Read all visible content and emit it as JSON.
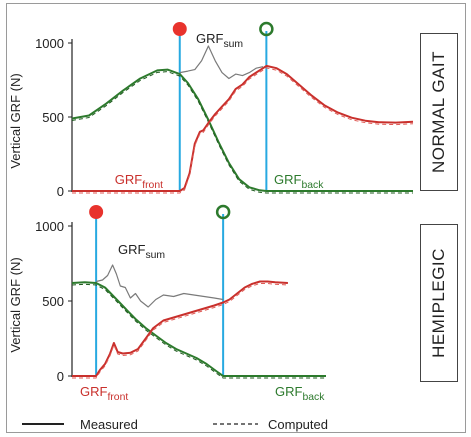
{
  "chart_data": [
    {
      "type": "line",
      "panel_label": "NORMAL GAIT",
      "ylabel": "Vertical GRF (N)",
      "xlabel": "",
      "ylim": [
        0,
        1000
      ],
      "xlim": [
        0,
        100
      ],
      "yticks": [
        0,
        500,
        1000
      ],
      "annotations": {
        "sum_main": "GRF",
        "sum_sub": "sum",
        "front_main": "GRF",
        "front_sub": "front",
        "back_main": "GRF",
        "back_sub": "back"
      },
      "markers": [
        {
          "kind": "filled-circle",
          "color": "#e8332d",
          "x": 31.6
        },
        {
          "kind": "open-circle",
          "color": "#2d7a2d",
          "x": 57.0
        }
      ],
      "vlines": [
        31.6,
        57.0
      ],
      "series": [
        {
          "role": "front",
          "color": "#2d7a2d",
          "x": [
            0,
            5,
            10,
            15,
            20,
            25,
            28,
            31.6,
            34,
            37,
            40,
            43,
            46,
            49,
            52,
            55,
            57,
            60,
            100
          ],
          "y": [
            490,
            510,
            590,
            680,
            760,
            815,
            820,
            790,
            730,
            620,
            480,
            330,
            190,
            80,
            25,
            5,
            0,
            0,
            0
          ]
        },
        {
          "role": "back",
          "color": "#c9302c",
          "x": [
            0,
            30,
            31.6,
            33,
            34.5,
            36,
            37.5,
            38.5,
            40,
            42,
            44,
            46,
            48,
            50,
            52,
            54,
            56,
            57,
            60,
            63,
            66,
            70,
            74,
            78,
            82,
            86,
            90,
            95,
            100
          ],
          "y": [
            0,
            0,
            0,
            20,
            120,
            320,
            400,
            410,
            460,
            520,
            570,
            620,
            690,
            720,
            770,
            800,
            830,
            845,
            830,
            790,
            730,
            650,
            580,
            530,
            495,
            475,
            465,
            462,
            468
          ]
        },
        {
          "role": "sum",
          "color": "#7a7a7a",
          "x": [
            31.6,
            34,
            36,
            38,
            40,
            42,
            44,
            46,
            48,
            50,
            52,
            54,
            56
          ],
          "y": [
            800,
            810,
            820,
            880,
            980,
            880,
            800,
            760,
            790,
            780,
            800,
            830,
            840
          ]
        }
      ]
    },
    {
      "type": "line",
      "panel_label": "HEMIPLEGIC",
      "ylabel": "Vertical GRF (N)",
      "xlabel": "",
      "ylim": [
        0,
        1000
      ],
      "xlim": [
        0,
        100
      ],
      "yticks": [
        0,
        500,
        1000
      ],
      "annotations": {
        "sum_main": "GRF",
        "sum_sub": "sum",
        "front_main": "GRF",
        "front_sub": "front",
        "back_main": "GRF",
        "back_sub": "back"
      },
      "markers": [
        {
          "kind": "filled-circle",
          "color": "#e8332d",
          "x": 9.5
        },
        {
          "kind": "open-circle",
          "color": "#2d7a2d",
          "x": 59.5
        }
      ],
      "vlines": [
        9.5,
        59.5
      ],
      "series": [
        {
          "role": "front",
          "color": "#2d7a2d",
          "x": [
            0,
            5,
            9.5,
            13,
            17,
            21,
            25,
            29,
            33,
            37,
            41,
            45,
            49,
            53,
            57,
            59.5,
            62,
            100
          ],
          "y": [
            620,
            625,
            620,
            590,
            520,
            450,
            380,
            320,
            270,
            220,
            180,
            150,
            120,
            80,
            30,
            0,
            0,
            0
          ]
        },
        {
          "role": "back",
          "color": "#c9302c",
          "x": [
            0,
            9.5,
            11,
            13,
            15,
            16.5,
            18,
            20,
            23,
            26,
            29,
            32,
            36,
            40,
            44,
            48,
            52,
            56,
            59.5,
            62,
            65,
            68,
            71,
            74,
            77,
            80,
            85
          ],
          "y": [
            0,
            0,
            40,
            80,
            150,
            220,
            160,
            150,
            155,
            180,
            250,
            320,
            370,
            390,
            410,
            430,
            450,
            470,
            490,
            510,
            550,
            590,
            615,
            630,
            630,
            625,
            620
          ]
        },
        {
          "role": "sum",
          "color": "#7a7a7a",
          "x": [
            9.5,
            12,
            14,
            16,
            17.5,
            19,
            21,
            23,
            25,
            27,
            30,
            33,
            36,
            40,
            44,
            48,
            52,
            56,
            59.5
          ],
          "y": [
            630,
            640,
            670,
            740,
            680,
            600,
            590,
            520,
            550,
            500,
            460,
            510,
            540,
            530,
            550,
            540,
            530,
            520,
            510
          ]
        }
      ]
    }
  ],
  "legend": {
    "measured_label": "Measured",
    "computed_label": "Computed"
  }
}
